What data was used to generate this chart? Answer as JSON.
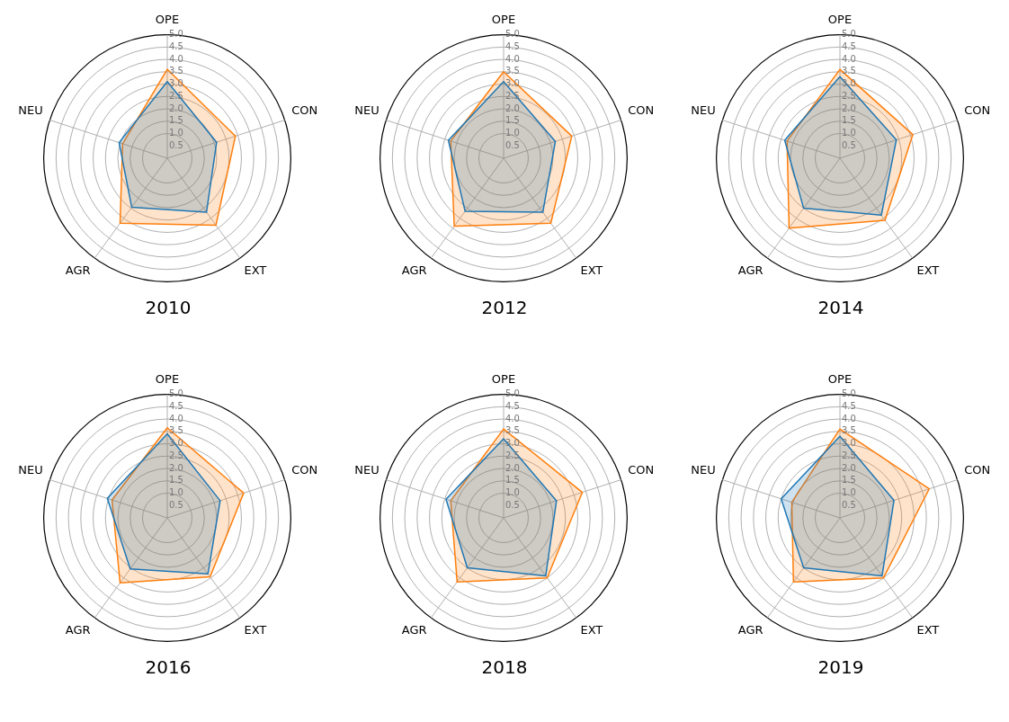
{
  "chart_data": [
    {
      "type": "radar",
      "title": "2010",
      "categories": [
        "OPE",
        "CON",
        "EXT",
        "AGR",
        "NEU"
      ],
      "ylim": [
        0,
        5
      ],
      "yticks": [
        {
          "value": 0.5,
          "label": "0.5"
        },
        {
          "value": 1,
          "label": "1.0"
        },
        {
          "value": 1.5,
          "label": "1.5"
        },
        {
          "value": 2,
          "label": "2.0"
        },
        {
          "value": 2.5,
          "label": "2.5"
        },
        {
          "value": 3,
          "label": "3.0"
        },
        {
          "value": 3.5,
          "label": "3.5"
        },
        {
          "value": 4,
          "label": "4.0"
        },
        {
          "value": 4.5,
          "label": "4.5"
        },
        {
          "value": 5,
          "label": "5.0"
        }
      ],
      "grid": true,
      "series": [
        {
          "color": "#1f77b4",
          "values": [
            3.1,
            2.1,
            2.7,
            2.45,
            2.05
          ]
        },
        {
          "color": "#ff7f0e",
          "values": [
            3.6,
            2.9,
            3.35,
            3.25,
            1.9
          ]
        }
      ]
    },
    {
      "type": "radar",
      "title": "2012",
      "categories": [
        "OPE",
        "CON",
        "EXT",
        "AGR",
        "NEU"
      ],
      "ylim": [
        0,
        5
      ],
      "yticks": [
        {
          "value": 0.5,
          "label": "0.5"
        },
        {
          "value": 1,
          "label": "1.0"
        },
        {
          "value": 1.5,
          "label": "1.5"
        },
        {
          "value": 2,
          "label": "2.0"
        },
        {
          "value": 2.5,
          "label": "2.5"
        },
        {
          "value": 3,
          "label": "3.0"
        },
        {
          "value": 3.5,
          "label": "3.5"
        },
        {
          "value": 4,
          "label": "4.0"
        },
        {
          "value": 4.5,
          "label": "4.5"
        },
        {
          "value": 5,
          "label": "5.0"
        }
      ],
      "grid": true,
      "series": [
        {
          "color": "#1f77b4",
          "values": [
            3.1,
            2.2,
            2.7,
            2.65,
            2.35
          ]
        },
        {
          "color": "#ff7f0e",
          "values": [
            3.5,
            2.9,
            3.25,
            3.4,
            2.25
          ]
        }
      ]
    },
    {
      "type": "radar",
      "title": "2014",
      "categories": [
        "OPE",
        "CON",
        "EXT",
        "AGR",
        "NEU"
      ],
      "ylim": [
        0,
        5
      ],
      "yticks": [
        {
          "value": 0.5,
          "label": "0.5"
        },
        {
          "value": 1,
          "label": "1.0"
        },
        {
          "value": 1.5,
          "label": "1.5"
        },
        {
          "value": 2,
          "label": "2.0"
        },
        {
          "value": 2.5,
          "label": "2.5"
        },
        {
          "value": 3,
          "label": "3.0"
        },
        {
          "value": 3.5,
          "label": "3.5"
        },
        {
          "value": 4,
          "label": "4.0"
        },
        {
          "value": 4.5,
          "label": "4.5"
        },
        {
          "value": 5,
          "label": "5.0"
        }
      ],
      "grid": true,
      "series": [
        {
          "color": "#1f77b4",
          "values": [
            3.3,
            2.4,
            2.85,
            2.5,
            2.35
          ]
        },
        {
          "color": "#ff7f0e",
          "values": [
            3.6,
            3.1,
            3.1,
            3.5,
            2.25
          ]
        }
      ]
    },
    {
      "type": "radar",
      "title": "2016",
      "categories": [
        "OPE",
        "CON",
        "EXT",
        "AGR",
        "NEU"
      ],
      "ylim": [
        0,
        5
      ],
      "yticks": [
        {
          "value": 0.5,
          "label": "0.5"
        },
        {
          "value": 1,
          "label": "1.0"
        },
        {
          "value": 1.5,
          "label": "1.5"
        },
        {
          "value": 2,
          "label": "2.0"
        },
        {
          "value": 2.5,
          "label": "2.5"
        },
        {
          "value": 3,
          "label": "3.0"
        },
        {
          "value": 3.5,
          "label": "3.5"
        },
        {
          "value": 4,
          "label": "4.0"
        },
        {
          "value": 4.5,
          "label": "4.5"
        },
        {
          "value": 5,
          "label": "5.0"
        }
      ],
      "grid": true,
      "series": [
        {
          "color": "#1f77b4",
          "values": [
            3.4,
            2.25,
            2.8,
            2.55,
            2.55
          ]
        },
        {
          "color": "#ff7f0e",
          "values": [
            3.65,
            3.25,
            2.95,
            3.25,
            2.35
          ]
        }
      ]
    },
    {
      "type": "radar",
      "title": "2018",
      "categories": [
        "OPE",
        "CON",
        "EXT",
        "AGR",
        "NEU"
      ],
      "ylim": [
        0,
        5
      ],
      "yticks": [
        {
          "value": 0.5,
          "label": "0.5"
        },
        {
          "value": 1,
          "label": "1.0"
        },
        {
          "value": 1.5,
          "label": "1.5"
        },
        {
          "value": 2,
          "label": "2.0"
        },
        {
          "value": 2.5,
          "label": "2.5"
        },
        {
          "value": 3,
          "label": "3.0"
        },
        {
          "value": 3.5,
          "label": "3.5"
        },
        {
          "value": 4,
          "label": "4.0"
        },
        {
          "value": 4.5,
          "label": "4.5"
        },
        {
          "value": 5,
          "label": "5.0"
        }
      ],
      "grid": true,
      "series": [
        {
          "color": "#1f77b4",
          "values": [
            3.2,
            2.25,
            2.9,
            2.5,
            2.45
          ]
        },
        {
          "color": "#ff7f0e",
          "values": [
            3.6,
            3.35,
            3.0,
            3.2,
            2.25
          ]
        }
      ]
    },
    {
      "type": "radar",
      "title": "2019",
      "categories": [
        "OPE",
        "CON",
        "EXT",
        "AGR",
        "NEU"
      ],
      "ylim": [
        0,
        5
      ],
      "yticks": [
        {
          "value": 0.5,
          "label": "0.5"
        },
        {
          "value": 1,
          "label": "1.0"
        },
        {
          "value": 1.5,
          "label": "1.5"
        },
        {
          "value": 2,
          "label": "2.0"
        },
        {
          "value": 2.5,
          "label": "2.5"
        },
        {
          "value": 3,
          "label": "3.0"
        },
        {
          "value": 3.5,
          "label": "3.5"
        },
        {
          "value": 4,
          "label": "4.0"
        },
        {
          "value": 4.5,
          "label": "4.5"
        },
        {
          "value": 5,
          "label": "5.0"
        }
      ],
      "grid": true,
      "series": [
        {
          "color": "#1f77b4",
          "values": [
            3.3,
            2.3,
            2.9,
            2.5,
            2.5
          ]
        },
        {
          "color": "#ff7f0e",
          "values": [
            3.6,
            3.8,
            3.0,
            3.2,
            2.05
          ]
        }
      ]
    }
  ]
}
